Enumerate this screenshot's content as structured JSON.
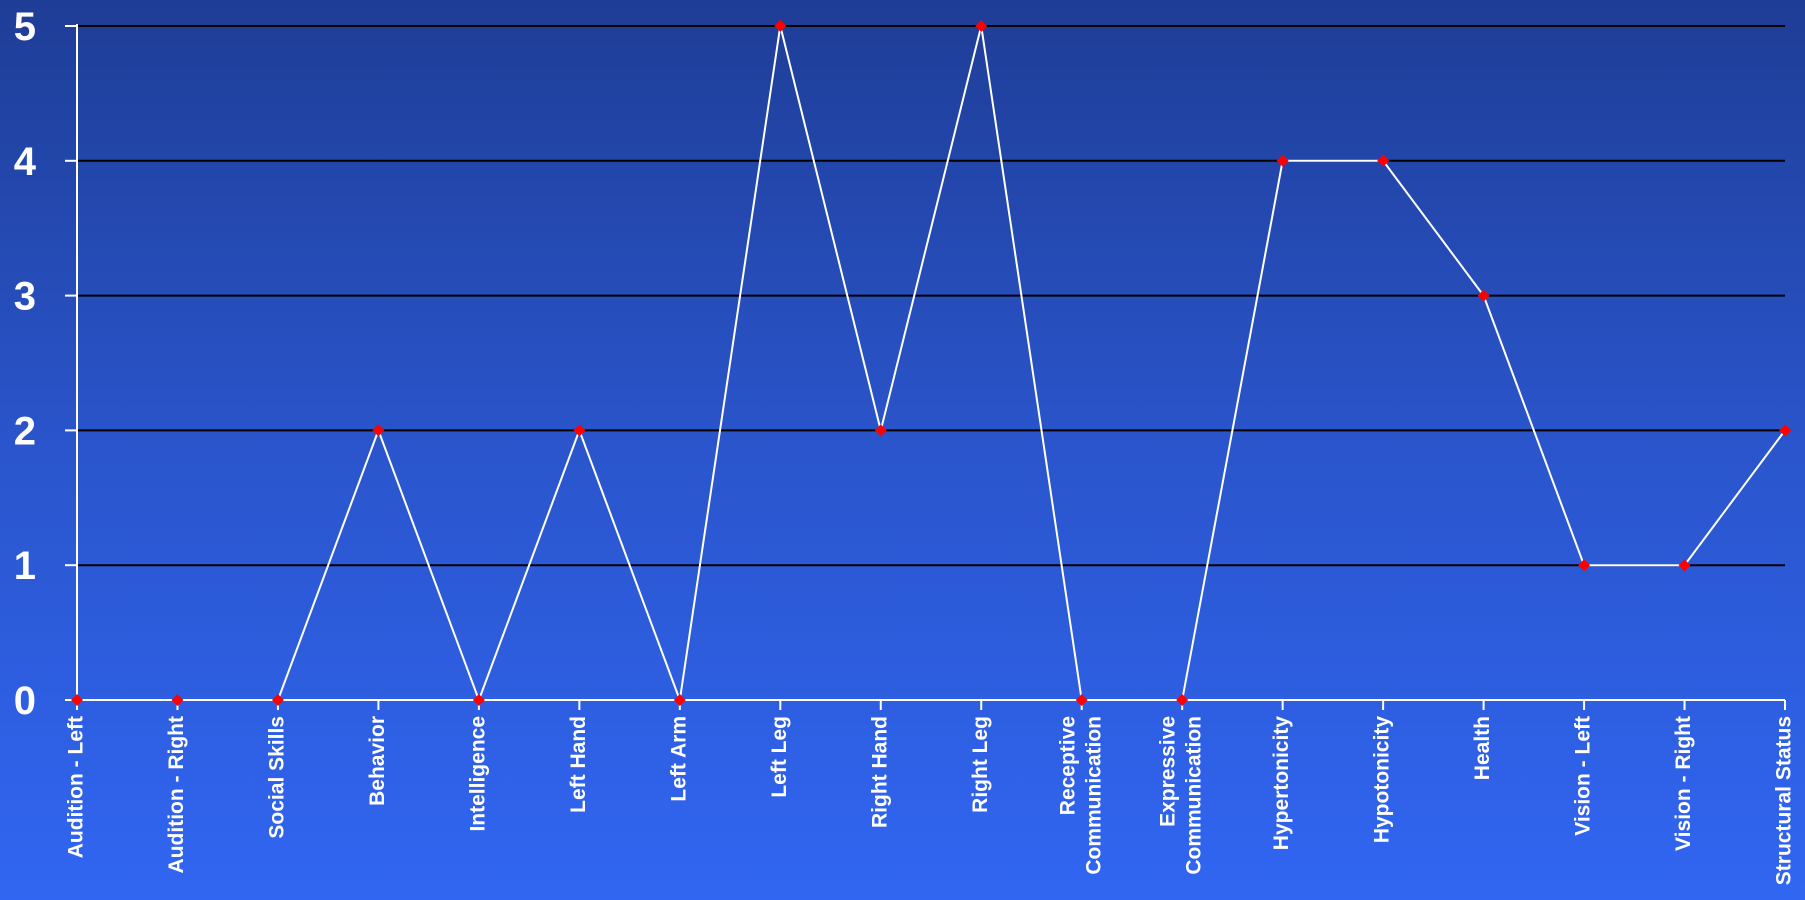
{
  "chart_data": {
    "type": "line",
    "categories": [
      [
        "Audition - Left"
      ],
      [
        "Audition - Right"
      ],
      [
        "Social Skills"
      ],
      [
        "Behavior"
      ],
      [
        "Intelligence"
      ],
      [
        "Left Hand"
      ],
      [
        "Left Arm"
      ],
      [
        "Left Leg"
      ],
      [
        "Right Hand"
      ],
      [
        "Right Leg"
      ],
      [
        "Receptive",
        "Communication"
      ],
      [
        "Expressive",
        "Communication"
      ],
      [
        "Hypertonicity"
      ],
      [
        "Hypotonicity"
      ],
      [
        "Health"
      ],
      [
        "Vision - Left"
      ],
      [
        "Vision - Right"
      ],
      [
        "Structural Status"
      ]
    ],
    "values": [
      0,
      0,
      0,
      2,
      0,
      2,
      0,
      5,
      2,
      5,
      0,
      0,
      4,
      4,
      3,
      1,
      1,
      2
    ],
    "yticks": [
      "0",
      "1",
      "2",
      "3",
      "4",
      "5"
    ],
    "ylim": [
      0,
      5
    ],
    "grid": true,
    "colors": {
      "line": "#ffffff",
      "marker": "#ff0000",
      "grid": "#000000",
      "axis": "#ffffff",
      "text": "#ffffff"
    }
  }
}
